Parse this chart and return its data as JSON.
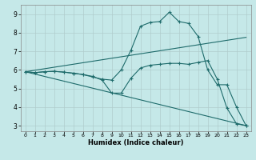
{
  "xlabel": "Humidex (Indice chaleur)",
  "background_color": "#c5e8e8",
  "grid_color": "#b0cccc",
  "line_color": "#1e6b6b",
  "xlim": [
    -0.5,
    23.5
  ],
  "ylim": [
    2.7,
    9.5
  ],
  "xticks": [
    0,
    1,
    2,
    3,
    4,
    5,
    6,
    7,
    8,
    9,
    10,
    11,
    12,
    13,
    14,
    15,
    16,
    17,
    18,
    19,
    20,
    21,
    22,
    23
  ],
  "yticks": [
    3,
    4,
    5,
    6,
    7,
    8,
    9
  ],
  "line1_x": [
    0,
    1,
    2,
    3,
    4,
    5,
    6,
    7,
    8,
    9,
    10,
    11,
    12,
    13,
    14,
    15,
    16,
    17,
    18,
    19,
    20,
    21,
    22,
    23
  ],
  "line1_y": [
    5.9,
    5.85,
    5.9,
    5.92,
    5.88,
    5.82,
    5.75,
    5.65,
    5.45,
    4.75,
    4.75,
    5.55,
    6.1,
    6.25,
    6.3,
    6.35,
    6.35,
    6.3,
    6.4,
    6.5,
    5.5,
    3.95,
    3.1,
    3.0
  ],
  "line2_x": [
    0,
    1,
    2,
    3,
    4,
    5,
    6,
    7,
    8,
    9,
    10,
    11,
    12,
    13,
    14,
    15,
    16,
    17,
    18,
    19,
    20,
    21,
    22,
    23
  ],
  "line2_y": [
    5.9,
    5.85,
    5.9,
    5.92,
    5.88,
    5.82,
    5.75,
    5.62,
    5.5,
    5.45,
    6.0,
    7.05,
    8.35,
    8.55,
    8.6,
    9.1,
    8.6,
    8.5,
    7.8,
    6.0,
    5.2,
    5.2,
    4.0,
    3.0
  ],
  "line3_x": [
    0,
    23
  ],
  "line3_y": [
    5.9,
    7.75
  ],
  "line4_x": [
    0,
    23
  ],
  "line4_y": [
    5.9,
    3.0
  ]
}
